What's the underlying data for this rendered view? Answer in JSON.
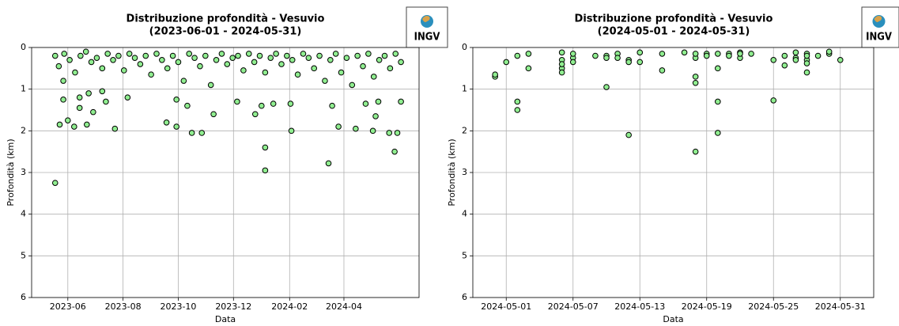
{
  "chart_data": [
    {
      "type": "scatter",
      "title": "Distribuzione profondità - Vesuvio",
      "subtitle": "(2023-06-01 - 2024-05-31)",
      "x_label": "Data",
      "y_label": "Profondità (km)",
      "logo": "INGV",
      "color": "#90ee90",
      "edgecolor": "#000000",
      "grid": true,
      "xlim": [
        "2023-04-22",
        "2024-06-23"
      ],
      "xticks": [
        {
          "value": "2023-06-01",
          "label": "2023-06"
        },
        {
          "value": "2023-08-01",
          "label": "2023-08"
        },
        {
          "value": "2023-10-01",
          "label": "2023-10"
        },
        {
          "value": "2023-12-01",
          "label": "2023-12"
        },
        {
          "value": "2024-02-01",
          "label": "2024-02"
        },
        {
          "value": "2024-04-01",
          "label": "2024-04"
        }
      ],
      "ylim": [
        6,
        0
      ],
      "yticks": [
        0,
        1,
        2,
        3,
        4,
        5,
        6
      ],
      "x": [
        "2023-05-18",
        "2023-05-22",
        "2023-05-28",
        "2023-06-03",
        "2023-06-09",
        "2023-06-15",
        "2023-06-21",
        "2023-06-27",
        "2023-07-03",
        "2023-07-09",
        "2023-07-15",
        "2023-07-21",
        "2023-07-27",
        "2023-08-02",
        "2023-08-08",
        "2023-08-14",
        "2023-08-20",
        "2023-08-26",
        "2023-09-01",
        "2023-09-07",
        "2023-09-13",
        "2023-09-19",
        "2023-09-25",
        "2023-10-01",
        "2023-10-07",
        "2023-10-13",
        "2023-10-19",
        "2023-10-25",
        "2023-10-31",
        "2023-11-06",
        "2023-11-12",
        "2023-11-18",
        "2023-11-24",
        "2023-11-30",
        "2023-12-06",
        "2023-12-12",
        "2023-12-18",
        "2023-12-24",
        "2023-12-30",
        "2024-01-05",
        "2024-01-11",
        "2024-01-17",
        "2024-01-23",
        "2024-01-29",
        "2024-02-04",
        "2024-02-10",
        "2024-02-16",
        "2024-02-22",
        "2024-02-28",
        "2024-03-05",
        "2024-03-11",
        "2024-03-17",
        "2024-03-23",
        "2024-03-29",
        "2024-04-04",
        "2024-04-10",
        "2024-04-16",
        "2024-04-22",
        "2024-04-28",
        "2024-05-04",
        "2024-05-10",
        "2024-05-16",
        "2024-05-22",
        "2024-05-28",
        "2024-06-03",
        "2023-05-18",
        "2023-05-23",
        "2023-05-27",
        "2023-05-27",
        "2023-06-01",
        "2023-06-08",
        "2023-06-14",
        "2023-06-14",
        "2023-06-22",
        "2023-06-24",
        "2023-06-29",
        "2023-07-09",
        "2023-07-13",
        "2023-07-23",
        "2023-08-06",
        "2023-09-18",
        "2023-09-29",
        "2023-09-29",
        "2023-10-11",
        "2023-10-16",
        "2023-10-27",
        "2023-11-09",
        "2023-12-05",
        "2023-12-25",
        "2024-01-01",
        "2024-01-05",
        "2024-01-05",
        "2024-01-14",
        "2024-02-03",
        "2024-02-02",
        "2024-03-15",
        "2024-03-19",
        "2024-03-26",
        "2024-04-14",
        "2024-04-25",
        "2024-05-03",
        "2024-05-06",
        "2024-05-09",
        "2024-05-21",
        "2024-05-27",
        "2024-05-30",
        "2024-06-03"
      ],
      "values": [
        0.2,
        0.45,
        0.15,
        0.3,
        0.6,
        0.2,
        0.1,
        0.35,
        0.25,
        0.5,
        0.15,
        0.3,
        0.2,
        0.55,
        0.15,
        0.25,
        0.4,
        0.2,
        0.65,
        0.15,
        0.3,
        0.5,
        0.2,
        0.35,
        0.8,
        0.15,
        0.25,
        0.45,
        0.2,
        0.9,
        0.3,
        0.15,
        0.4,
        0.25,
        0.2,
        0.55,
        0.15,
        0.35,
        0.2,
        0.6,
        0.25,
        0.15,
        0.4,
        0.2,
        0.3,
        0.65,
        0.15,
        0.25,
        0.5,
        0.2,
        0.8,
        0.3,
        0.15,
        0.6,
        0.25,
        0.9,
        0.2,
        0.45,
        0.15,
        0.7,
        0.3,
        0.2,
        0.5,
        0.15,
        0.35,
        3.25,
        1.85,
        1.25,
        0.8,
        1.75,
        1.9,
        1.2,
        1.45,
        1.85,
        1.1,
        1.55,
        1.05,
        1.3,
        1.95,
        1.2,
        1.8,
        1.9,
        1.25,
        1.4,
        2.05,
        2.05,
        1.6,
        1.3,
        1.6,
        1.4,
        2.4,
        2.95,
        1.35,
        2.0,
        1.35,
        2.78,
        1.4,
        1.9,
        1.95,
        1.35,
        2.0,
        1.65,
        1.3,
        2.05,
        2.5,
        2.05,
        1.3
      ]
    },
    {
      "type": "scatter",
      "title": "Distribuzione profondità - Vesuvio",
      "subtitle": "(2024-05-01 - 2024-05-31)",
      "x_label": "Data",
      "y_label": "Profondità (km)",
      "logo": "INGV",
      "color": "#90ee90",
      "edgecolor": "#000000",
      "grid": true,
      "xlim": [
        "2024-04-28",
        "2024-06-03"
      ],
      "xticks": [
        "2024-05-01",
        "2024-05-07",
        "2024-05-13",
        "2024-05-19",
        "2024-05-25",
        "2024-05-31"
      ],
      "ylim": [
        6,
        0
      ],
      "yticks": [
        0,
        1,
        2,
        3,
        4,
        5,
        6
      ],
      "x": [
        "2024-04-30",
        "2024-04-30",
        "2024-05-01",
        "2024-05-02",
        "2024-05-02",
        "2024-05-02",
        "2024-05-03",
        "2024-05-03",
        "2024-05-06",
        "2024-05-06",
        "2024-05-06",
        "2024-05-06",
        "2024-05-06",
        "2024-05-07",
        "2024-05-07",
        "2024-05-07",
        "2024-05-09",
        "2024-05-10",
        "2024-05-10",
        "2024-05-10",
        "2024-05-11",
        "2024-05-11",
        "2024-05-12",
        "2024-05-12",
        "2024-05-12",
        "2024-05-13",
        "2024-05-13",
        "2024-05-15",
        "2024-05-15",
        "2024-05-17",
        "2024-05-18",
        "2024-05-18",
        "2024-05-18",
        "2024-05-18",
        "2024-05-18",
        "2024-05-19",
        "2024-05-19",
        "2024-05-20",
        "2024-05-20",
        "2024-05-20",
        "2024-05-20",
        "2024-05-21",
        "2024-05-21",
        "2024-05-22",
        "2024-05-22",
        "2024-05-22",
        "2024-05-23",
        "2024-05-25",
        "2024-05-25",
        "2024-05-26",
        "2024-05-26",
        "2024-05-27",
        "2024-05-27",
        "2024-05-27",
        "2024-05-28",
        "2024-05-28",
        "2024-05-28",
        "2024-05-28",
        "2024-05-28",
        "2024-05-29",
        "2024-05-30",
        "2024-05-30",
        "2024-05-31"
      ],
      "values": [
        0.7,
        0.65,
        0.35,
        1.3,
        1.5,
        0.2,
        0.15,
        0.5,
        0.5,
        0.3,
        0.12,
        0.4,
        0.6,
        0.25,
        0.15,
        0.35,
        0.2,
        0.2,
        0.95,
        0.25,
        0.15,
        0.25,
        0.3,
        0.35,
        2.1,
        0.35,
        0.12,
        0.15,
        0.55,
        0.12,
        2.5,
        0.7,
        0.85,
        0.25,
        0.15,
        0.15,
        0.2,
        2.05,
        1.3,
        0.5,
        0.15,
        0.15,
        0.2,
        0.12,
        0.25,
        0.15,
        0.15,
        1.27,
        0.3,
        0.2,
        0.43,
        0.12,
        0.25,
        0.3,
        0.15,
        0.6,
        0.3,
        0.2,
        0.38,
        0.2,
        0.15,
        0.1,
        0.3
      ]
    }
  ]
}
